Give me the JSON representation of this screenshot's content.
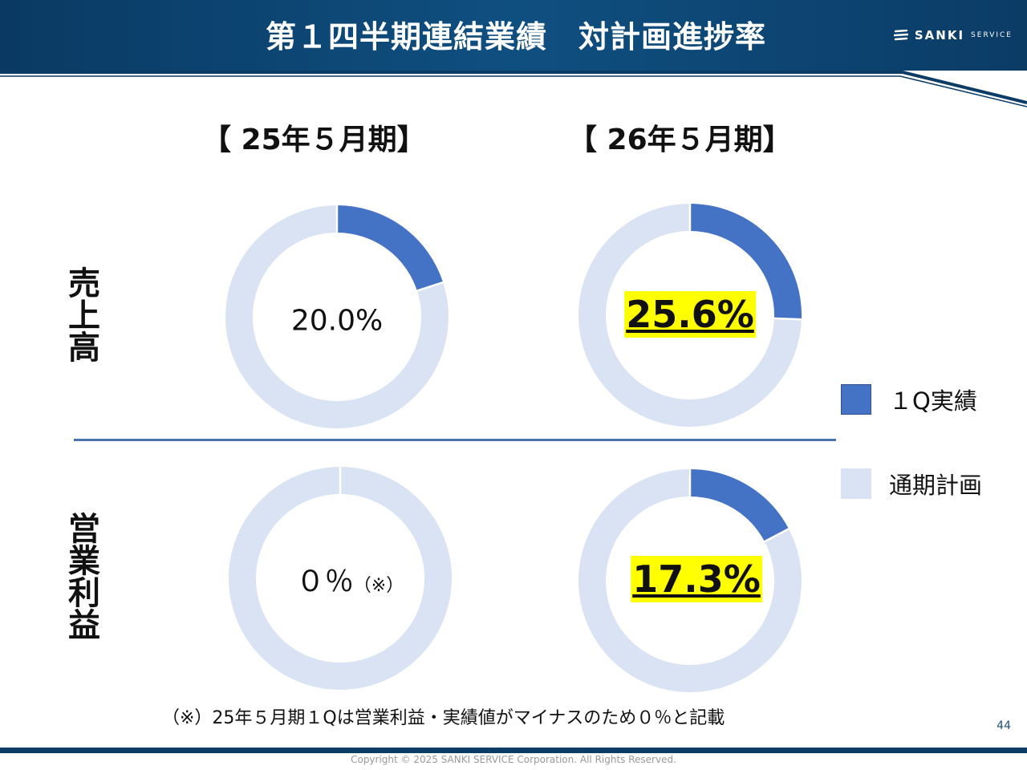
{
  "header": {
    "title": "第１四半期連結業績　対計画進捗率",
    "logo_text": "SANKI",
    "logo_sub": "SERVICE"
  },
  "periods": [
    "【 25年５月期】",
    "【 26年５月期】"
  ],
  "row_labels": [
    "売上高",
    "営業利益"
  ],
  "chart_data": [
    {
      "type": "pie",
      "variant": "donut",
      "period": "【 25年５月期】",
      "metric": "売上高",
      "categories": [
        "１Q実績",
        "通期計画"
      ],
      "values": [
        20.0,
        80.0
      ],
      "center_label": "20.0%",
      "highlight": false
    },
    {
      "type": "pie",
      "variant": "donut",
      "period": "【 26年５月期】",
      "metric": "売上高",
      "categories": [
        "１Q実績",
        "通期計画"
      ],
      "values": [
        25.6,
        74.4
      ],
      "center_label": "25.6%",
      "highlight": true
    },
    {
      "type": "pie",
      "variant": "donut",
      "period": "【 25年５月期】",
      "metric": "営業利益",
      "categories": [
        "１Q実績",
        "通期計画"
      ],
      "values": [
        0,
        100
      ],
      "center_label": "０％",
      "center_note": "（※）",
      "highlight": false
    },
    {
      "type": "pie",
      "variant": "donut",
      "period": "【 26年５月期】",
      "metric": "営業利益",
      "categories": [
        "１Q実績",
        "通期計画"
      ],
      "values": [
        17.3,
        82.7
      ],
      "center_label": "17.3%",
      "highlight": true
    }
  ],
  "legend": [
    {
      "label": "１Q実績",
      "color": "#4472c4"
    },
    {
      "label": "通期計画",
      "color": "#dae3f3"
    }
  ],
  "colors": {
    "actual": "#4472c4",
    "plan": "#dae3f3",
    "highlight": "#ffff00"
  },
  "footnote": "（※）25年５月期１Qは営業利益・実績値がマイナスのため０％と記載",
  "page_number": "44",
  "copyright": "Copyright © 2025 SANKI SERVICE Corporation. All Rights Reserved."
}
